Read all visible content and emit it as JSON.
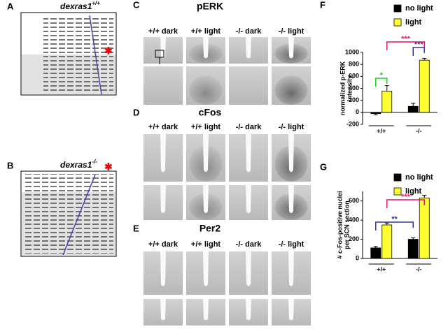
{
  "panels": {
    "A": {
      "label": "A",
      "title": "dexras1",
      "superscript": "+/+"
    },
    "B": {
      "label": "B",
      "title": "dexras1",
      "superscript": "-/-"
    },
    "C": {
      "label": "C",
      "title": "pERK",
      "columns": [
        "+/+ dark",
        "+/+ light",
        "-/- dark",
        "-/- light"
      ]
    },
    "D": {
      "label": "D",
      "title": "cFos",
      "columns": [
        "+/+ dark",
        "+/+ light",
        "-/- dark",
        "-/- light"
      ]
    },
    "E": {
      "label": "E",
      "title": "Per2",
      "columns": [
        "+/+ dark",
        "+/+ light",
        "-/- dark",
        "-/- light"
      ]
    }
  },
  "chart_data": [
    {
      "type": "bar",
      "panel_label": "F",
      "ylabel": [
        "normalized p-ERK",
        "intensity"
      ],
      "categories": [
        "+/+",
        "-/-"
      ],
      "series": [
        {
          "name": "no light",
          "color": "#000000",
          "values": [
            -20,
            100
          ],
          "errors": [
            20,
            50
          ]
        },
        {
          "name": "light",
          "color": "#ffff33",
          "values": [
            355,
            870
          ],
          "errors": [
            90,
            30
          ]
        }
      ],
      "ylim": [
        -200,
        1000
      ],
      "yticks": [
        -200,
        0,
        200,
        400,
        600,
        800,
        1000
      ],
      "annotations": [
        {
          "text": "*",
          "color": "#22cc22"
        },
        {
          "text": "***",
          "color": "#33339a"
        },
        {
          "text": "***",
          "color": "#e8146a"
        }
      ]
    },
    {
      "type": "bar",
      "panel_label": "G",
      "ylabel": [
        "# c-Fos-positive nuclei",
        "per SCN section"
      ],
      "categories": [
        "+/+",
        "-/-"
      ],
      "series": [
        {
          "name": "no light",
          "color": "#000000",
          "values": [
            110,
            200
          ],
          "errors": [
            15,
            15
          ]
        },
        {
          "name": "light",
          "color": "#ffff33",
          "values": [
            350,
            630
          ],
          "errors": [
            20,
            30
          ]
        }
      ],
      "ylim": [
        0,
        700
      ],
      "yticks": [
        0,
        200,
        400,
        600
      ],
      "annotations": [
        {
          "text": "**",
          "color": "#33339a"
        },
        {
          "text": "***",
          "color": "#e8146a"
        }
      ]
    }
  ]
}
